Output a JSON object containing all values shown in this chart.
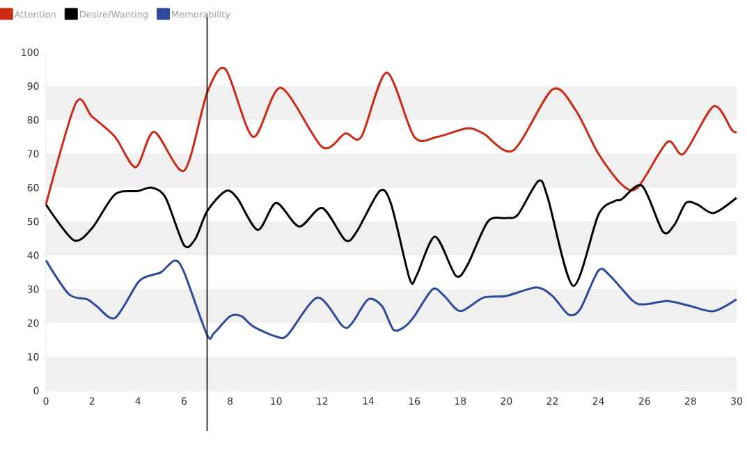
{
  "chart_data": {
    "type": "line",
    "xlim": [
      0,
      30
    ],
    "ylim": [
      0,
      100
    ],
    "xticks": [
      0,
      2,
      4,
      6,
      8,
      10,
      12,
      14,
      16,
      18,
      20,
      22,
      24,
      26,
      28,
      30
    ],
    "yticks": [
      0,
      10,
      20,
      30,
      40,
      50,
      60,
      70,
      80,
      90,
      100
    ],
    "legend": "top left",
    "marker": "none",
    "line_style": "solid",
    "bands": [
      {
        "axis": "y",
        "from": 0,
        "to": 10,
        "color": "#f0f0f0"
      },
      {
        "axis": "y",
        "from": 20,
        "to": 30,
        "color": "#f0f0f0"
      },
      {
        "axis": "y",
        "from": 40,
        "to": 50,
        "color": "#f0f0f0"
      },
      {
        "axis": "y",
        "from": 60,
        "to": 70,
        "color": "#f0f0f0"
      },
      {
        "axis": "y",
        "from": 80,
        "to": 90,
        "color": "#f0f0f0"
      }
    ],
    "ref_lines": [
      {
        "axis": "x",
        "value": 7,
        "color": "#000000"
      }
    ],
    "series": [
      {
        "name": "Attention",
        "color": "#cc2a14",
        "x": [
          0,
          1.3,
          2,
          3,
          3.9,
          4.7,
          6,
          7,
          7.8,
          9,
          10.2,
          12,
          13,
          13.7,
          14.8,
          16,
          17,
          18.3,
          19,
          20.3,
          22,
          23,
          24,
          25,
          25.7,
          27,
          27.7,
          29,
          29.8,
          30
        ],
        "values": [
          55,
          85,
          81,
          75,
          66,
          76.5,
          65,
          88,
          95,
          75,
          89.5,
          72,
          76,
          75,
          94,
          75,
          75,
          77.5,
          76,
          71,
          89,
          83,
          70,
          61,
          60,
          73.5,
          70,
          84,
          77,
          76.5
        ]
      },
      {
        "name": "Desire/Wanting",
        "color": "#000000",
        "x": [
          0,
          1.2,
          2,
          3,
          4,
          4.6,
          5.2,
          6,
          6.5,
          7,
          7.8,
          8.3,
          9.2,
          10,
          11,
          12,
          13,
          13.5,
          14.5,
          15,
          15.8,
          16.1,
          16.9,
          17.8,
          18.3,
          19.2,
          20,
          20.5,
          21.4,
          21.8,
          22.9,
          24,
          24.7,
          25,
          25.9,
          26.8,
          27.3,
          27.8,
          28.3,
          29,
          30
        ],
        "values": [
          55,
          44.5,
          48,
          58,
          59,
          60,
          57,
          43,
          45,
          53,
          59,
          57,
          47.5,
          55.5,
          48.5,
          54,
          44.5,
          47,
          59,
          55,
          33,
          34,
          45.5,
          34,
          37,
          50,
          51,
          52,
          62,
          57,
          31,
          52,
          56,
          56.5,
          60.5,
          47,
          49,
          55.5,
          55,
          52.5,
          57
        ]
      },
      {
        "name": "Memorability",
        "color": "#2e4a9e",
        "x": [
          0,
          1,
          1.8,
          2.2,
          3,
          4,
          4.5,
          5,
          5.6,
          6,
          7,
          7.3,
          8,
          8.5,
          9,
          10,
          10.5,
          11.8,
          12.9,
          13.3,
          14,
          14.6,
          15.1,
          15.6,
          16,
          16.8,
          17.3,
          18,
          19,
          20,
          21.3,
          22,
          22.7,
          23.2,
          24,
          24.5,
          25.5,
          26,
          27,
          28,
          29,
          30
        ],
        "values": [
          38.5,
          28.5,
          27,
          25,
          21.5,
          32,
          34,
          35,
          38.5,
          35,
          16.5,
          17,
          22,
          22,
          19,
          16,
          16.5,
          27.5,
          19,
          20,
          27,
          25,
          18,
          19,
          22,
          30,
          28,
          23.5,
          27.5,
          28,
          30.5,
          28,
          22.5,
          24,
          35.5,
          34,
          26.5,
          25.5,
          26.5,
          25,
          23.5,
          27
        ]
      }
    ]
  }
}
